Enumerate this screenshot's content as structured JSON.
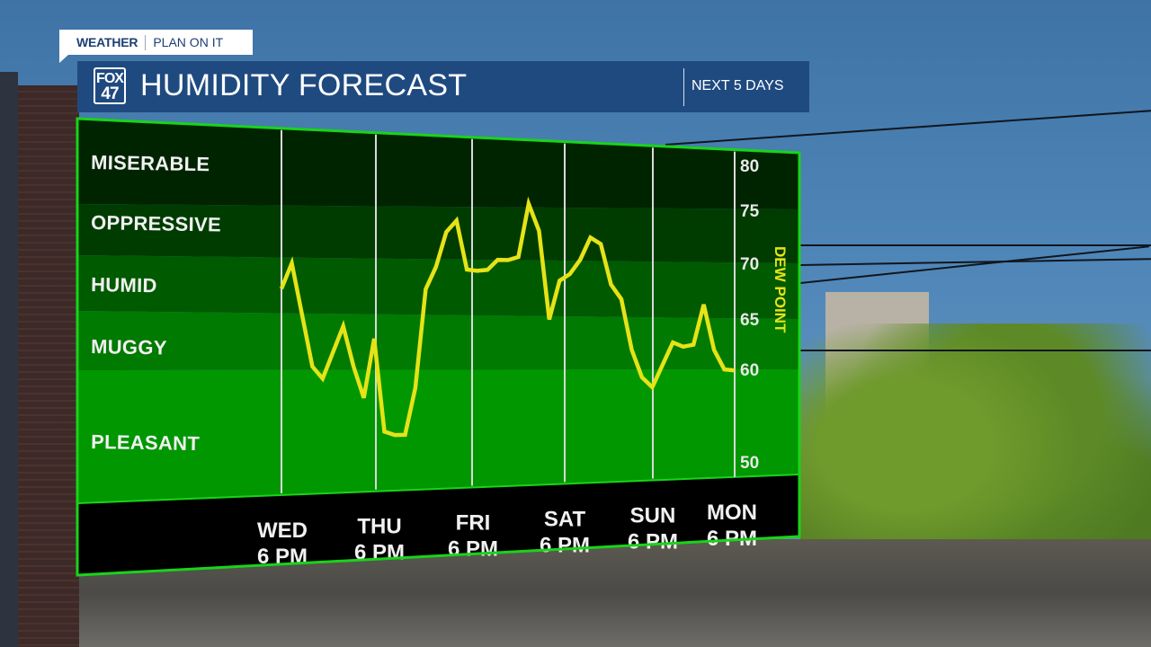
{
  "header": {
    "tagline_brand": "WEATHER",
    "tagline_slogan": "PLAN ON IT",
    "logo_line1": "FOX",
    "logo_line2": "47",
    "title": "HUMIDITY FORECAST",
    "subtitle": "NEXT 5 DAYS"
  },
  "colors": {
    "title_bar": "#1f4a80",
    "panel_border": "#19d419",
    "line": "#e6e317",
    "bands": {
      "miserable": "#002400",
      "oppressive": "#003c00",
      "humid": "#005a00",
      "muggy": "#007a00",
      "pleasant": "#009700"
    },
    "axis_bar": "#000000"
  },
  "chart_data": {
    "type": "line",
    "title": "HUMIDITY FORECAST",
    "subtitle": "NEXT 5 DAYS",
    "xlabel": "",
    "ylabel": "DEW POINT",
    "ylim": [
      50,
      80
    ],
    "y_ticks": [
      80,
      75,
      70,
      65,
      60,
      50
    ],
    "grid": true,
    "categories": [
      {
        "day": "WED",
        "time": "6 PM"
      },
      {
        "day": "THU",
        "time": "6 PM"
      },
      {
        "day": "FRI",
        "time": "6 PM"
      },
      {
        "day": "SAT",
        "time": "6 PM"
      },
      {
        "day": "SUN",
        "time": "6 PM"
      },
      {
        "day": "MON",
        "time": "6 PM"
      }
    ],
    "comfort_bands": [
      {
        "label": "MISERABLE",
        "from": 75,
        "to": 80
      },
      {
        "label": "OPPRESSIVE",
        "from": 70,
        "to": 75
      },
      {
        "label": "HUMID",
        "from": 65,
        "to": 70
      },
      {
        "label": "MUGGY",
        "from": 60,
        "to": 65
      },
      {
        "label": "PLEASANT",
        "from": 50,
        "to": 60
      }
    ],
    "series": [
      {
        "name": "Dew Point",
        "x_hours_from_wed_6pm": [
          0,
          3,
          9,
          12,
          18,
          21,
          24,
          27,
          30,
          33,
          36,
          39,
          42,
          45,
          48,
          51,
          54,
          57,
          60,
          63,
          66,
          69,
          72,
          75,
          78,
          81,
          84,
          87,
          90,
          93,
          96,
          99,
          102,
          105,
          108,
          114,
          117,
          120,
          123,
          126,
          129,
          132
        ],
        "values": [
          67.2,
          69.5,
          60.3,
          59.3,
          63.9,
          60.3,
          57.7,
          62.8,
          54.9,
          54.6,
          54.6,
          58.5,
          67.3,
          69.3,
          72.6,
          73.7,
          69.1,
          69.0,
          69.1,
          70.0,
          70.0,
          70.3,
          75.4,
          72.8,
          64.7,
          68.2,
          68.8,
          70.1,
          72.2,
          71.6,
          67.9,
          66.6,
          61.9,
          59.3,
          58.4,
          62.6,
          62.2,
          62.4,
          66.2,
          61.9,
          60.0,
          59.9
        ]
      }
    ]
  }
}
